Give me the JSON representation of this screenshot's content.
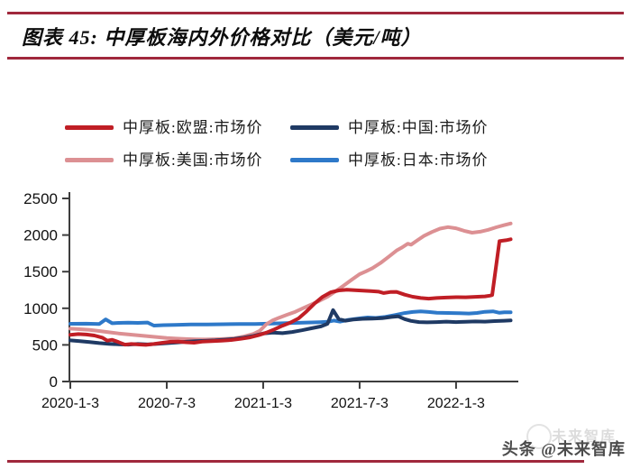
{
  "header": {
    "title": "图表 45: 中厚板海内外价格对比（美元/吨）"
  },
  "legend": {
    "items": [
      {
        "id": "eu",
        "label": "中厚板:欧盟:市场价",
        "color": "#C01E25"
      },
      {
        "id": "cn",
        "label": "中厚板:中国:市场价",
        "color": "#1F3A64"
      },
      {
        "id": "us",
        "label": "中厚板:美国:市场价",
        "color": "#DC9093"
      },
      {
        "id": "jp",
        "label": "中厚板:日本:市场价",
        "color": "#2E79C9"
      }
    ]
  },
  "watermark": {
    "ghost": "未来智库",
    "text": "头条 @未来智库"
  },
  "chart_data": {
    "type": "line",
    "title": "中厚板海内外价格对比",
    "unit": "美元/吨",
    "x_axis": {
      "description": "date, monthly index from 2020-1-3",
      "tick_positions": [
        0,
        6,
        12,
        18,
        24
      ],
      "tick_labels": [
        "2020-1-3",
        "2020-7-3",
        "2021-1-3",
        "2021-7-3",
        "2022-1-3"
      ],
      "x_end": 27.4
    },
    "y_axis": {
      "min": 0,
      "max": 2500,
      "ticks": [
        0,
        500,
        1000,
        1500,
        2000,
        2500
      ]
    },
    "grid": false,
    "legend_position": "top",
    "series": [
      {
        "name": "中厚板:欧盟:市场价",
        "color": "#C01E25",
        "points": [
          [
            0,
            638
          ],
          [
            0.5,
            648
          ],
          [
            1,
            642
          ],
          [
            1.5,
            628
          ],
          [
            2,
            598
          ],
          [
            2.3,
            558
          ],
          [
            2.6,
            570
          ],
          [
            3,
            538
          ],
          [
            3.4,
            504
          ],
          [
            3.8,
            512
          ],
          [
            4.2,
            506
          ],
          [
            4.7,
            500
          ],
          [
            5.2,
            512
          ],
          [
            5.7,
            528
          ],
          [
            6.2,
            542
          ],
          [
            6.7,
            546
          ],
          [
            7.2,
            536
          ],
          [
            7.7,
            530
          ],
          [
            8.2,
            544
          ],
          [
            8.8,
            552
          ],
          [
            9.4,
            558
          ],
          [
            10,
            566
          ],
          [
            10.6,
            582
          ],
          [
            11.2,
            604
          ],
          [
            11.7,
            632
          ],
          [
            12.2,
            668
          ],
          [
            12.7,
            712
          ],
          [
            13.2,
            762
          ],
          [
            13.7,
            806
          ],
          [
            14.2,
            862
          ],
          [
            14.7,
            958
          ],
          [
            15.2,
            1066
          ],
          [
            15.7,
            1156
          ],
          [
            16.2,
            1218
          ],
          [
            16.7,
            1244
          ],
          [
            17.2,
            1252
          ],
          [
            17.7,
            1246
          ],
          [
            18.2,
            1240
          ],
          [
            18.7,
            1234
          ],
          [
            19.2,
            1226
          ],
          [
            19.5,
            1208
          ],
          [
            19.9,
            1222
          ],
          [
            20.3,
            1224
          ],
          [
            20.8,
            1186
          ],
          [
            21.3,
            1158
          ],
          [
            21.8,
            1140
          ],
          [
            22.3,
            1132
          ],
          [
            22.8,
            1140
          ],
          [
            23.4,
            1146
          ],
          [
            24,
            1152
          ],
          [
            24.6,
            1150
          ],
          [
            25.2,
            1156
          ],
          [
            25.8,
            1162
          ],
          [
            26.1,
            1172
          ],
          [
            26.25,
            1180
          ],
          [
            26.7,
            1918
          ],
          [
            27.1,
            1928
          ],
          [
            27.4,
            1942
          ]
        ]
      },
      {
        "name": "中厚板:中国:市场价",
        "color": "#1F3A64",
        "points": [
          [
            0,
            562
          ],
          [
            0.6,
            552
          ],
          [
            1.2,
            538
          ],
          [
            1.8,
            525
          ],
          [
            2.4,
            515
          ],
          [
            3,
            508
          ],
          [
            3.6,
            504
          ],
          [
            4.2,
            512
          ],
          [
            4.8,
            506
          ],
          [
            5.4,
            514
          ],
          [
            6,
            524
          ],
          [
            6.6,
            533
          ],
          [
            7.2,
            543
          ],
          [
            7.8,
            550
          ],
          [
            8.4,
            556
          ],
          [
            9,
            562
          ],
          [
            9.6,
            572
          ],
          [
            10.2,
            582
          ],
          [
            10.8,
            598
          ],
          [
            11.4,
            622
          ],
          [
            12,
            655
          ],
          [
            12.6,
            668
          ],
          [
            13.2,
            660
          ],
          [
            13.8,
            676
          ],
          [
            14.4,
            700
          ],
          [
            15,
            726
          ],
          [
            15.6,
            752
          ],
          [
            16,
            788
          ],
          [
            16.35,
            975
          ],
          [
            16.7,
            852
          ],
          [
            17.1,
            830
          ],
          [
            17.6,
            846
          ],
          [
            18.2,
            856
          ],
          [
            18.8,
            860
          ],
          [
            19.4,
            864
          ],
          [
            20,
            882
          ],
          [
            20.4,
            890
          ],
          [
            20.8,
            852
          ],
          [
            21.2,
            828
          ],
          [
            21.7,
            812
          ],
          [
            22.2,
            808
          ],
          [
            22.8,
            812
          ],
          [
            23.4,
            818
          ],
          [
            24,
            812
          ],
          [
            24.6,
            816
          ],
          [
            25.2,
            820
          ],
          [
            25.8,
            818
          ],
          [
            26.4,
            825
          ],
          [
            27,
            830
          ],
          [
            27.4,
            834
          ]
        ]
      },
      {
        "name": "中厚板:美国:市场价",
        "color": "#DC9093",
        "points": [
          [
            0,
            722
          ],
          [
            0.6,
            714
          ],
          [
            1.2,
            704
          ],
          [
            1.8,
            690
          ],
          [
            2.4,
            672
          ],
          [
            3,
            656
          ],
          [
            3.6,
            644
          ],
          [
            4.2,
            630
          ],
          [
            4.8,
            618
          ],
          [
            5.4,
            606
          ],
          [
            6,
            594
          ],
          [
            6.6,
            586
          ],
          [
            7.2,
            580
          ],
          [
            7.8,
            576
          ],
          [
            8.4,
            574
          ],
          [
            9,
            578
          ],
          [
            9.6,
            582
          ],
          [
            10.2,
            590
          ],
          [
            10.8,
            614
          ],
          [
            11.4,
            650
          ],
          [
            11.8,
            694
          ],
          [
            12.2,
            782
          ],
          [
            12.6,
            836
          ],
          [
            13,
            872
          ],
          [
            13.5,
            912
          ],
          [
            14,
            952
          ],
          [
            14.5,
            1002
          ],
          [
            15,
            1052
          ],
          [
            15.5,
            1102
          ],
          [
            16,
            1158
          ],
          [
            16.5,
            1232
          ],
          [
            17,
            1308
          ],
          [
            17.5,
            1388
          ],
          [
            18,
            1465
          ],
          [
            18.4,
            1505
          ],
          [
            18.8,
            1548
          ],
          [
            19.3,
            1618
          ],
          [
            19.8,
            1702
          ],
          [
            20.3,
            1788
          ],
          [
            20.6,
            1825
          ],
          [
            21,
            1882
          ],
          [
            21.2,
            1868
          ],
          [
            21.6,
            1928
          ],
          [
            22,
            1988
          ],
          [
            22.5,
            2042
          ],
          [
            23,
            2088
          ],
          [
            23.5,
            2108
          ],
          [
            24,
            2092
          ],
          [
            24.5,
            2058
          ],
          [
            25,
            2032
          ],
          [
            25.5,
            2046
          ],
          [
            26,
            2072
          ],
          [
            26.5,
            2106
          ],
          [
            27,
            2136
          ],
          [
            27.4,
            2158
          ]
        ]
      },
      {
        "name": "中厚板:日本:市场价",
        "color": "#2E79C9",
        "points": [
          [
            0,
            788
          ],
          [
            1,
            790
          ],
          [
            1.8,
            786
          ],
          [
            2.2,
            848
          ],
          [
            2.6,
            795
          ],
          [
            3,
            800
          ],
          [
            3.6,
            803
          ],
          [
            4.2,
            800
          ],
          [
            4.8,
            806
          ],
          [
            5.2,
            764
          ],
          [
            5.8,
            770
          ],
          [
            6.5,
            774
          ],
          [
            7.5,
            778
          ],
          [
            8.5,
            780
          ],
          [
            9.5,
            782
          ],
          [
            10.5,
            784
          ],
          [
            11.5,
            786
          ],
          [
            12.5,
            792
          ],
          [
            13.5,
            798
          ],
          [
            14.5,
            804
          ],
          [
            15.5,
            810
          ],
          [
            16,
            815
          ],
          [
            16.4,
            832
          ],
          [
            16.8,
            818
          ],
          [
            17.3,
            842
          ],
          [
            18,
            862
          ],
          [
            18.5,
            874
          ],
          [
            19,
            868
          ],
          [
            19.6,
            882
          ],
          [
            20.2,
            908
          ],
          [
            20.8,
            935
          ],
          [
            21.3,
            950
          ],
          [
            21.8,
            958
          ],
          [
            22.3,
            950
          ],
          [
            22.8,
            940
          ],
          [
            23.5,
            936
          ],
          [
            24.2,
            932
          ],
          [
            24.8,
            928
          ],
          [
            25.3,
            936
          ],
          [
            25.8,
            952
          ],
          [
            26.3,
            958
          ],
          [
            26.7,
            938
          ],
          [
            27,
            944
          ],
          [
            27.4,
            946
          ]
        ]
      }
    ]
  }
}
